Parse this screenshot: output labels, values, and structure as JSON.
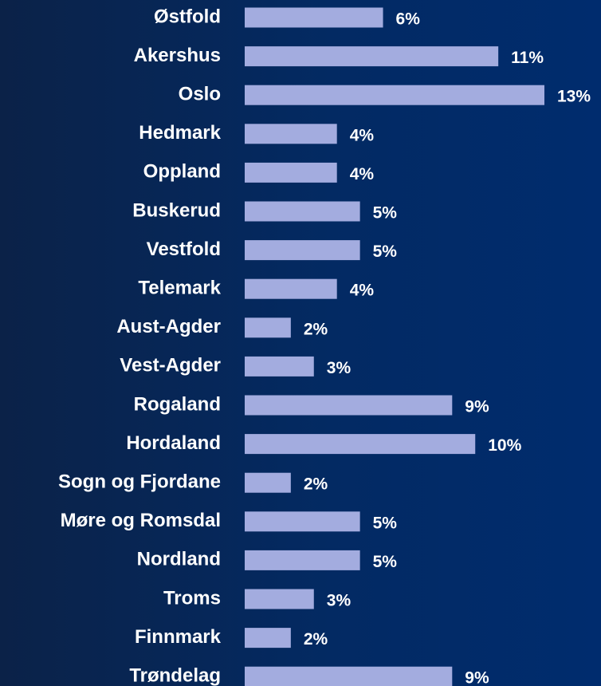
{
  "chart_data": {
    "type": "bar",
    "orientation": "horizontal",
    "color": "#a3acdf",
    "categories": [
      "Østfold",
      "Akershus",
      "Oslo",
      "Hedmark",
      "Oppland",
      "Buskerud",
      "Vestfold",
      "Telemark",
      "Aust-Agder",
      "Vest-Agder",
      "Rogaland",
      "Hordaland",
      "Sogn og Fjordane",
      "Møre og Romsdal",
      "Nordland",
      "Troms",
      "Finnmark",
      "Trøndelag"
    ],
    "values": [
      6,
      11,
      13,
      4,
      4,
      5,
      5,
      4,
      2,
      3,
      9,
      10,
      2,
      5,
      5,
      3,
      2,
      9
    ],
    "value_labels": [
      "6%",
      "11%",
      "13%",
      "4%",
      "4%",
      "5%",
      "5%",
      "4%",
      "2%",
      "3%",
      "9%",
      "10%",
      "2%",
      "5%",
      "5%",
      "3%",
      "2%",
      "9%"
    ]
  }
}
